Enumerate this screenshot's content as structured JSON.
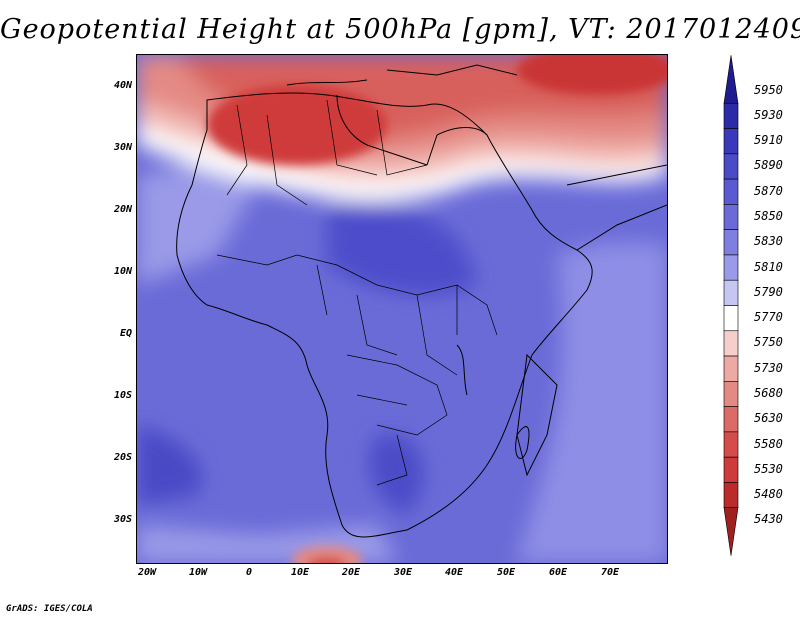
{
  "title": "Geopotential Height at 500hPa [gpm], VT: 2017012409",
  "footer": "GrADS: IGES/COLA",
  "lat_labels": [
    "40N",
    "30N",
    "20N",
    "10N",
    "EQ",
    "10S",
    "20S",
    "30S"
  ],
  "lon_labels": [
    "20W",
    "10W",
    "0",
    "10E",
    "20E",
    "30E",
    "40E",
    "50E",
    "60E",
    "70E"
  ],
  "legend": {
    "labels": [
      "5950",
      "5930",
      "5910",
      "5890",
      "5870",
      "5850",
      "5830",
      "5810",
      "5790",
      "5770",
      "5750",
      "5730",
      "5680",
      "5630",
      "5580",
      "5530",
      "5480",
      "5430"
    ],
    "colors": [
      "#1f1c8f",
      "#2b2ba8",
      "#3a38bb",
      "#4b4bc8",
      "#5a5ad2",
      "#6b6bd8",
      "#7f7fe0",
      "#9a9ae8",
      "#c6c6f2",
      "#ffffff",
      "#f6cfcb",
      "#eda9a4",
      "#e48a84",
      "#dc6a66",
      "#d54d4b",
      "#cf3a3a",
      "#bb2b2b",
      "#a01f1f"
    ]
  },
  "chart_data": {
    "type": "heatmap",
    "title": "Geopotential Height at 500hPa [gpm], VT: 2017012409",
    "variable": "Geopotential Height at 500hPa",
    "units": "gpm",
    "valid_time": "2017012409",
    "x_ticks": [
      "20W",
      "10W",
      "0",
      "10E",
      "20E",
      "30E",
      "40E",
      "50E",
      "60E",
      "70E"
    ],
    "y_ticks": [
      "40N",
      "30N",
      "20N",
      "10N",
      "EQ",
      "10S",
      "20S",
      "30S"
    ],
    "lon_range": [
      -22,
      80
    ],
    "lat_range": [
      -37,
      45
    ],
    "colorbar_levels": [
      5430,
      5480,
      5530,
      5580,
      5630,
      5680,
      5730,
      5750,
      5770,
      5790,
      5810,
      5830,
      5850,
      5870,
      5890,
      5910,
      5930,
      5950
    ]
  }
}
